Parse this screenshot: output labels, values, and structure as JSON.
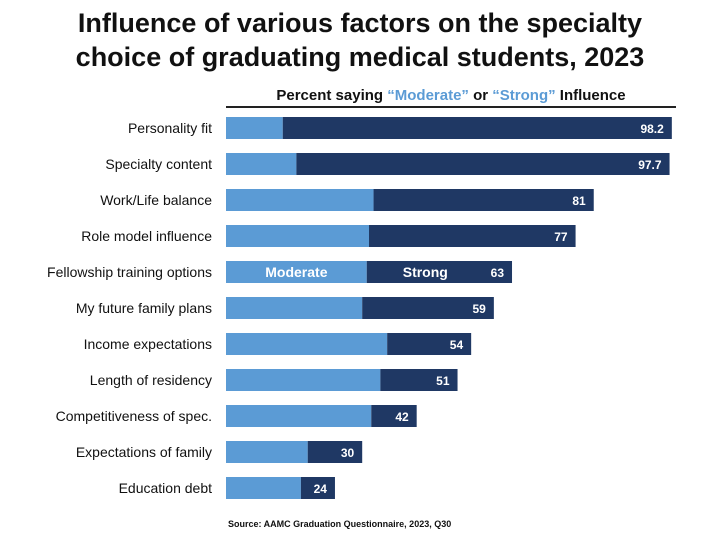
{
  "chart_data": {
    "type": "bar",
    "orientation": "horizontal",
    "stacked": true,
    "title_lines": [
      "Influence of various factors on the specialty",
      "choice of graduating medical students, 2023"
    ],
    "subtitle": {
      "prefix": "Percent saying ",
      "moderate_word": "“Moderate”",
      "middle": " or ",
      "strong_word": "“Strong”",
      "suffix": " Influence"
    },
    "categories": [
      "Personality fit",
      "Specialty content",
      "Work/Life balance",
      "Role model influence",
      "Fellowship training options",
      "My future family plans",
      "Income expectations",
      "Length of residency",
      "Competitiveness of spec.",
      "Expectations of family",
      "Education debt"
    ],
    "series": [
      {
        "name": "Moderate",
        "color": "#5b9bd5",
        "values": [
          12.5,
          15.5,
          32.5,
          31.5,
          31.0,
          30.0,
          35.5,
          34.0,
          32.0,
          18.0,
          16.5
        ]
      },
      {
        "name": "Strong",
        "color": "#1f3864",
        "values": [
          85.7,
          82.2,
          48.5,
          45.5,
          32.0,
          29.0,
          18.5,
          17.0,
          10.0,
          12.0,
          7.5
        ]
      }
    ],
    "totals": [
      "98.2",
      "97.7",
      "81",
      "77",
      "63",
      "59",
      "54",
      "51",
      "42",
      "30",
      "24"
    ],
    "inline_legend_row": 4,
    "xlim": [
      0,
      100
    ],
    "grid": false,
    "source": "Source: AAMC Graduation Questionnaire, 2023, Q30"
  }
}
